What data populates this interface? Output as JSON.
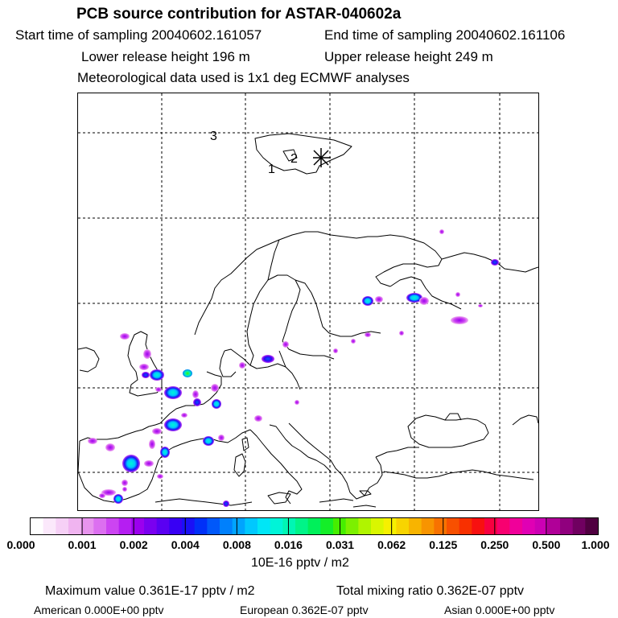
{
  "header": {
    "title": "PCB source contribution for ASTAR-040602a",
    "start_label": "Start time of sampling",
    "start_value": "20040602.161057",
    "end_label": "End time of sampling",
    "end_value": "20040602.161106",
    "lower_label": "Lower release height",
    "lower_value": "196 m",
    "upper_label": "Upper release height",
    "upper_value": "249 m",
    "met_text": "Meteorological data used is 1x1 deg ECMWF analyses"
  },
  "map": {
    "track_labels": [
      "1",
      "2",
      "3"
    ],
    "release_marker": "release-star"
  },
  "colorbar": {
    "ticks": [
      "0.000",
      "0.001",
      "0.002",
      "0.004",
      "0.008",
      "0.016",
      "0.031",
      "0.062",
      "0.125",
      "0.250",
      "0.500",
      "1.000"
    ],
    "units": "10E-16 pptv / m2",
    "colors": [
      "#ffffff",
      "#fbe8fb",
      "#f6d0f6",
      "#f0b4f0",
      "#e894ee",
      "#dc6ff0",
      "#cc44f2",
      "#b51ef2",
      "#9b00ee",
      "#7a00f0",
      "#5a00f2",
      "#3800f4",
      "#1a10f6",
      "#0030f8",
      "#0058fa",
      "#0080fc",
      "#00a4fe",
      "#00c8fe",
      "#00e6f6",
      "#00f4d8",
      "#00f6b4",
      "#00f488",
      "#00f05a",
      "#14ee28",
      "#46ee00",
      "#7cf000",
      "#b0f400",
      "#daf600",
      "#f6f000",
      "#f8d400",
      "#f8b400",
      "#f89400",
      "#f87200",
      "#f85000",
      "#f83000",
      "#f81010",
      "#f80040",
      "#f80070",
      "#f0009a",
      "#e000b4",
      "#cc00b4",
      "#b00098",
      "#90007e",
      "#700060",
      "#500040"
    ]
  },
  "footer": {
    "max_label": "Maximum value",
    "max_value": "0.361E-17 pptv / m2",
    "total_label": "Total mixing ratio",
    "total_value": "0.362E-07 pptv",
    "american_label": "American",
    "american_value": "0.000E+00 pptv",
    "european_label": "European",
    "european_value": "0.362E-07 pptv",
    "asian_label": "Asian",
    "asian_value": "0.000E+00 pptv"
  }
}
